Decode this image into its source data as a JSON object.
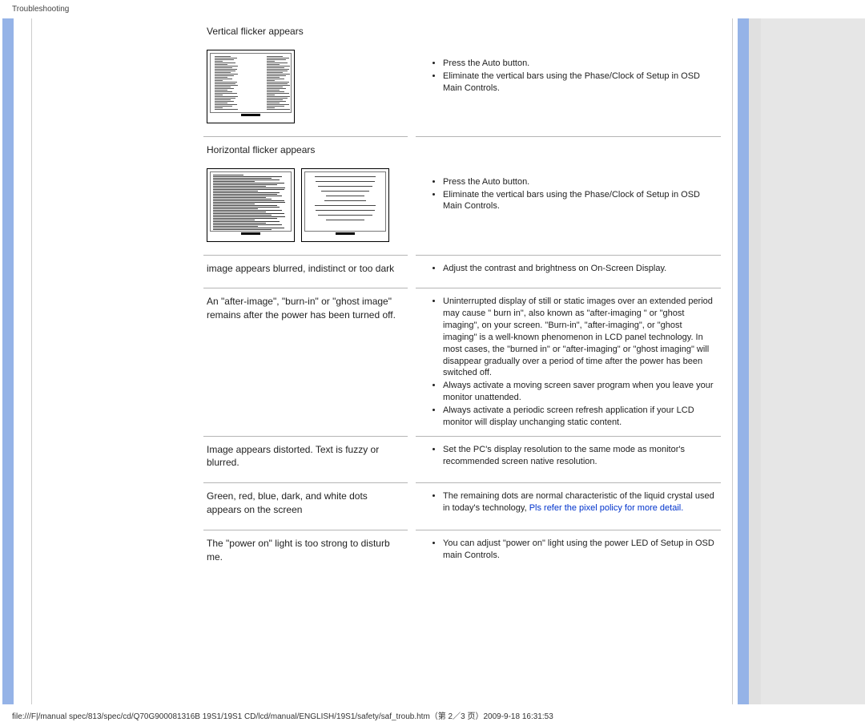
{
  "header": {
    "title": "Troubleshooting"
  },
  "rows": [
    {
      "problem": "Vertical flicker appears",
      "imgs": "vertical",
      "solutions_plain": [
        "Press the Auto button.",
        "Eliminate the vertical bars using the Phase/Clock of Setup in OSD Main Controls."
      ]
    },
    {
      "problem": "Horizontal flicker appears",
      "imgs": "horizontal",
      "solutions_plain": [
        "Press the Auto button.",
        "Eliminate the vertical bars using the Phase/Clock of Setup in OSD Main Controls."
      ]
    },
    {
      "problem": "image appears blurred, indistinct or too dark",
      "solutions_plain": [
        "Adjust the contrast and brightness on On-Screen Display."
      ]
    },
    {
      "problem": "An \"after-image\", \"burn-in\" or \"ghost image\" remains after the power has been turned off.",
      "solutions_plain": [
        "Uninterrupted display of still or static images over an extended period may cause \" burn in\", also known as \"after-imaging \" or \"ghost imaging\", on your screen. \"Burn-in\", \"after-imaging\", or \"ghost imaging\" is a well-known phenomenon in LCD panel technology. In most cases, the \"burned in\" or \"after-imaging\" or \"ghost imaging\" will disappear gradually over a period of time after the power has been switched off.",
        "Always activate a moving screen saver program when you leave your monitor unattended.",
        "Always activate a periodic screen refresh application if your LCD monitor will display unchanging static content."
      ]
    },
    {
      "problem": "Image appears distorted. Text   is fuzzy or blurred.",
      "solutions_plain": [
        "Set the PC's display resolution to the same mode as monitor's recommended screen native resolution."
      ]
    },
    {
      "problem": "Green, red, blue, dark, and white dots appears on the screen",
      "solutions_link": {
        "pre": "The remaining dots are normal characteristic of the liquid crystal used in today's technology, ",
        "link": "Pls refer the pixel policy for more detail."
      }
    },
    {
      "problem": "The \"power on\" light is too strong to disturb me.",
      "solutions_plain": [
        "You can adjust \"power on\" light using the power LED of Setup in OSD main Controls."
      ]
    }
  ],
  "footer": {
    "text": "file:///F|/manual spec/813/spec/cd/Q70G900081316B 19S1/19S1 CD/lcd/manual/ENGLISH/19S1/safety/saf_troub.htm（第 2／3 页）2009-9-18 16:31:53"
  },
  "colors": {
    "stripe_blue": "#95b3e7",
    "grey_bg": "#e6e6e6",
    "border": "#b5b5b5",
    "link": "#0033cc"
  }
}
